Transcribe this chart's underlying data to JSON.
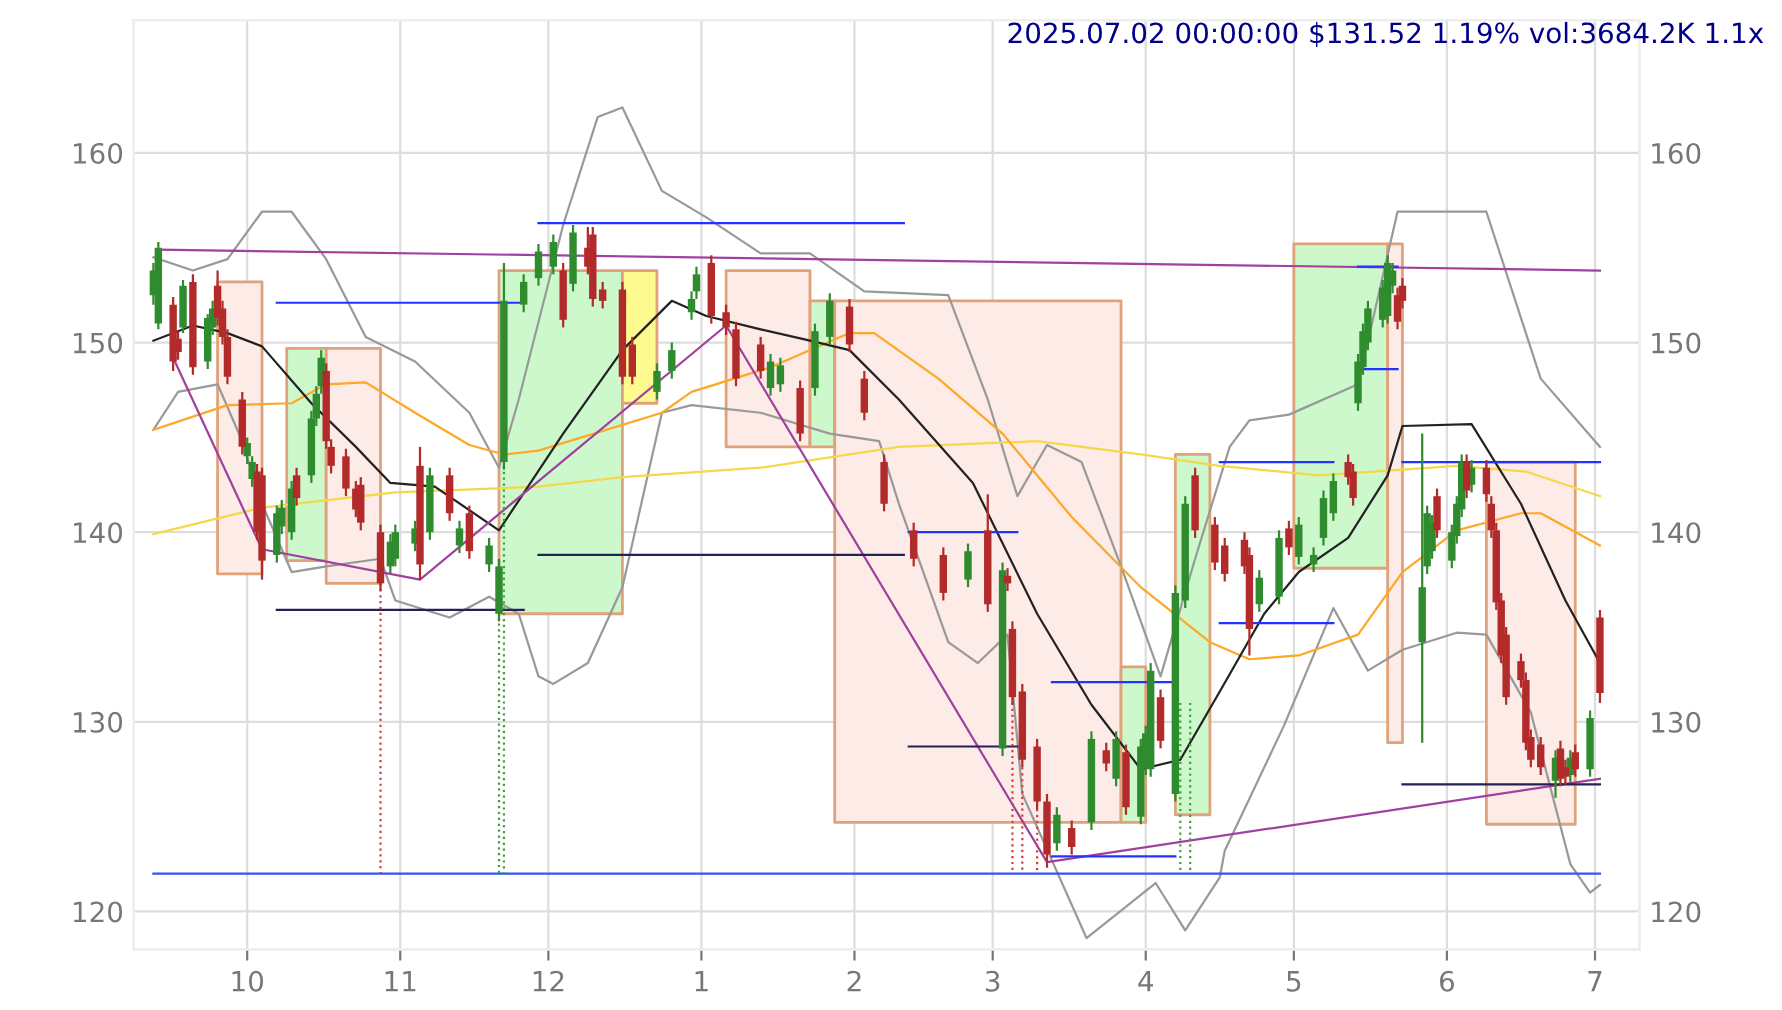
{
  "chart_data": {
    "type": "candlestick",
    "title": "2025.07.02 00:00:00 $131.52 1.19% vol:3684.2K 1.1x",
    "xlim": [
      "2024-09-08",
      "2025-07-10"
    ],
    "xticks": [
      {
        "value": "2024-10-01",
        "label": "10"
      },
      {
        "value": "2024-11-01",
        "label": "11"
      },
      {
        "value": "2024-12-01",
        "label": "12"
      },
      {
        "value": "2025-01-01",
        "label": "1"
      },
      {
        "value": "2025-02-01",
        "label": "2"
      },
      {
        "value": "2025-03-01",
        "label": "3"
      },
      {
        "value": "2025-04-01",
        "label": "4"
      },
      {
        "value": "2025-05-01",
        "label": "5"
      },
      {
        "value": "2025-06-01",
        "label": "6"
      },
      {
        "value": "2025-07-01",
        "label": "7"
      }
    ],
    "ylim": [
      118,
      167
    ],
    "yticks": [
      120,
      130,
      140,
      150,
      160
    ],
    "y2lim": [
      118,
      167
    ],
    "y2ticks": [
      120,
      130,
      140,
      150,
      160
    ],
    "grid": true,
    "series": [
      {
        "type": "area",
        "color": "#fcebe6",
        "x": [
          "2024-09-25",
          "2024-09-25",
          "2024-10-04",
          "2024-10-04"
        ],
        "values": [
          137.8,
          153.2,
          153.2,
          137.8
        ]
      },
      {
        "type": "area",
        "color": "#ccf8cc",
        "x": [
          "2024-10-09",
          "2024-10-09",
          "2024-10-17",
          "2024-10-17"
        ],
        "values": [
          138.5,
          149.7,
          149.7,
          138.5
        ]
      },
      {
        "type": "area",
        "color": "#fcebe6",
        "x": [
          "2024-10-17",
          "2024-10-17",
          "2024-10-28",
          "2024-10-28"
        ],
        "values": [
          137.3,
          149.7,
          149.7,
          137.3
        ]
      },
      {
        "type": "area",
        "color": "#ccf8cc",
        "x": [
          "2024-11-21",
          "2024-11-21",
          "2024-12-16",
          "2024-12-16"
        ],
        "values": [
          135.7,
          153.8,
          153.8,
          135.7
        ]
      },
      {
        "type": "area",
        "color": "#fdfa90",
        "x": [
          "2024-12-16",
          "2024-12-16",
          "2024-12-23",
          "2024-12-23"
        ],
        "values": [
          146.8,
          153.8,
          153.8,
          146.8
        ]
      },
      {
        "type": "area",
        "color": "#fcebe6",
        "x": [
          "2025-01-06",
          "2025-01-06",
          "2025-01-23",
          "2025-01-23"
        ],
        "values": [
          144.5,
          153.8,
          153.8,
          144.5
        ]
      },
      {
        "type": "area",
        "color": "#ccf8cc",
        "x": [
          "2025-01-23",
          "2025-01-23",
          "2025-01-28",
          "2025-01-28"
        ],
        "values": [
          144.5,
          152.2,
          152.2,
          144.5
        ]
      },
      {
        "type": "area",
        "color": "#fcebe6",
        "x": [
          "2025-01-28",
          "2025-01-28",
          "2025-03-27",
          "2025-03-27"
        ],
        "values": [
          124.7,
          152.2,
          152.2,
          124.7
        ]
      },
      {
        "type": "area",
        "color": "#ccf8cc",
        "x": [
          "2025-03-27",
          "2025-03-27",
          "2025-04-01",
          "2025-04-01"
        ],
        "values": [
          124.7,
          132.9,
          132.9,
          124.7
        ]
      },
      {
        "type": "area",
        "color": "#ccf8cc",
        "x": [
          "2025-04-07",
          "2025-04-07",
          "2025-04-14",
          "2025-04-14"
        ],
        "values": [
          125.1,
          144.1,
          144.1,
          125.1
        ]
      },
      {
        "type": "area",
        "color": "#ccf8cc",
        "x": [
          "2025-05-01",
          "2025-05-01",
          "2025-05-20",
          "2025-05-20"
        ],
        "values": [
          138.1,
          155.2,
          155.2,
          138.1
        ]
      },
      {
        "type": "area",
        "color": "#fcebe6",
        "x": [
          "2025-05-20",
          "2025-05-20",
          "2025-05-23",
          "2025-05-23"
        ],
        "values": [
          128.9,
          155.2,
          155.2,
          128.9
        ]
      },
      {
        "type": "area",
        "color": "#fcebe6",
        "x": [
          "2025-06-09",
          "2025-06-09",
          "2025-06-27",
          "2025-06-27"
        ],
        "values": [
          124.6,
          143.7,
          143.7,
          124.6
        ]
      },
      {
        "type": "line",
        "color": "#999999",
        "x": [
          "2024-09-12",
          "2024-09-20",
          "2024-09-27",
          "2024-10-04",
          "2024-10-10",
          "2024-10-17",
          "2024-10-25",
          "2024-11-04",
          "2024-11-15",
          "2024-11-21",
          "2024-11-25",
          "2024-12-04",
          "2024-12-11",
          "2024-12-16",
          "2024-12-24",
          "2025-01-02",
          "2025-01-13",
          "2025-01-23",
          "2025-02-03",
          "2025-02-20",
          "2025-02-28",
          "2025-03-06",
          "2025-03-12",
          "2025-03-19",
          "2025-03-27",
          "2025-04-04",
          "2025-04-11",
          "2025-04-18",
          "2025-04-22",
          "2025-04-30",
          "2025-05-14",
          "2025-05-22",
          "2025-06-09",
          "2025-06-20",
          "2025-07-02"
        ],
        "values": [
          154.5,
          153.8,
          154.4,
          156.9,
          156.9,
          154.4,
          150.3,
          149.0,
          146.3,
          143.4,
          147.0,
          156.2,
          161.9,
          162.4,
          158.0,
          156.6,
          154.7,
          154.7,
          152.7,
          152.5,
          147.0,
          141.9,
          144.6,
          143.7,
          138.2,
          132.4,
          138.6,
          144.5,
          145.9,
          146.2,
          147.8,
          156.9,
          156.9,
          148.1,
          144.5
        ]
      },
      {
        "type": "line",
        "color": "#999999",
        "x": [
          "2024-09-12",
          "2024-09-17",
          "2024-09-25",
          "2024-09-30",
          "2024-10-04",
          "2024-10-10",
          "2024-10-17",
          "2024-10-28",
          "2024-10-31",
          "2024-11-11",
          "2024-11-19",
          "2024-11-25",
          "2024-11-29",
          "2024-12-02",
          "2024-12-09",
          "2024-12-16",
          "2024-12-24",
          "2024-12-30",
          "2025-01-13",
          "2025-01-27",
          "2025-02-06",
          "2025-02-10",
          "2025-02-20",
          "2025-02-26",
          "2025-03-04",
          "2025-03-07",
          "2025-03-20",
          "2025-04-03",
          "2025-04-09",
          "2025-04-16",
          "2025-04-17",
          "2025-04-29",
          "2025-05-09",
          "2025-05-16",
          "2025-05-23",
          "2025-06-03",
          "2025-06-09",
          "2025-06-18",
          "2025-06-26",
          "2025-06-30",
          "2025-07-02"
        ],
        "values": [
          145.4,
          147.4,
          147.8,
          144.8,
          141.5,
          137.9,
          138.2,
          138.6,
          136.4,
          135.5,
          136.6,
          135.7,
          132.4,
          132.0,
          133.1,
          137.1,
          146.3,
          146.7,
          146.3,
          145.2,
          144.8,
          141.5,
          134.2,
          133.1,
          134.6,
          126.2,
          118.6,
          121.5,
          119.0,
          121.8,
          123.2,
          129.8,
          136.0,
          132.7,
          133.8,
          134.7,
          134.6,
          130.5,
          122.5,
          121.0,
          121.4
        ]
      },
      {
        "type": "line",
        "color": "#f5d84a",
        "x": [
          "2024-09-12",
          "2024-10-04",
          "2024-10-31",
          "2024-11-29",
          "2024-12-16",
          "2025-01-13",
          "2025-02-10",
          "2025-03-10",
          "2025-03-31",
          "2025-04-16",
          "2025-05-06",
          "2025-06-03",
          "2025-06-17",
          "2025-07-02"
        ],
        "values": [
          139.9,
          141.3,
          142.1,
          142.4,
          142.9,
          143.4,
          144.5,
          144.8,
          144.1,
          143.5,
          143.0,
          143.5,
          143.2,
          141.9
        ]
      },
      {
        "type": "line",
        "color": "#ffa726",
        "x": [
          "2024-09-12",
          "2024-09-27",
          "2024-10-10",
          "2024-10-17",
          "2024-10-25",
          "2024-11-04",
          "2024-11-15",
          "2024-11-22",
          "2024-11-29",
          "2024-12-24",
          "2024-12-30",
          "2025-01-15",
          "2025-01-31",
          "2025-02-05",
          "2025-02-18",
          "2025-03-03",
          "2025-03-17",
          "2025-03-31",
          "2025-04-14",
          "2025-04-22",
          "2025-05-02",
          "2025-05-14",
          "2025-05-23",
          "2025-06-03",
          "2025-06-16",
          "2025-06-20",
          "2025-07-02"
        ],
        "values": [
          145.4,
          146.7,
          146.8,
          147.8,
          147.9,
          146.3,
          144.6,
          144.1,
          144.3,
          146.3,
          147.4,
          148.7,
          150.5,
          150.5,
          148.1,
          145.2,
          140.8,
          137.1,
          134.2,
          133.3,
          133.5,
          134.6,
          137.9,
          140.1,
          141.0,
          141.0,
          139.3
        ]
      },
      {
        "type": "line",
        "color": "#222222",
        "x": [
          "2024-09-12",
          "2024-09-20",
          "2024-09-27",
          "2024-10-04",
          "2024-10-14",
          "2024-10-23",
          "2024-10-30",
          "2024-11-08",
          "2024-11-21",
          "2024-12-04",
          "2024-12-16",
          "2024-12-26",
          "2025-01-02",
          "2025-01-13",
          "2025-01-23",
          "2025-01-31",
          "2025-02-10",
          "2025-02-25",
          "2025-03-10",
          "2025-03-21",
          "2025-03-31",
          "2025-04-08",
          "2025-04-16",
          "2025-04-25",
          "2025-05-02",
          "2025-05-12",
          "2025-05-20",
          "2025-05-23",
          "2025-06-06",
          "2025-06-16",
          "2025-06-25",
          "2025-07-02"
        ],
        "values": [
          150.1,
          150.9,
          150.5,
          149.8,
          146.8,
          144.5,
          142.6,
          142.4,
          140.1,
          145.2,
          149.6,
          152.2,
          151.4,
          150.7,
          150.1,
          149.6,
          147.0,
          142.6,
          135.7,
          130.9,
          127.5,
          128.0,
          131.6,
          135.7,
          137.9,
          139.7,
          143.0,
          145.6,
          145.7,
          141.5,
          136.4,
          133.1
        ]
      },
      {
        "type": "line",
        "color": "#a040a0",
        "x": [
          "2024-09-13",
          "2025-07-02"
        ],
        "values": [
          154.9,
          153.8
        ]
      },
      {
        "type": "line",
        "color": "#a040a0",
        "x": [
          "2024-09-16",
          "2024-10-04",
          "2024-11-05",
          "2025-01-06",
          "2025-03-12",
          "2025-07-02"
        ],
        "values": [
          149.2,
          139.1,
          137.5,
          150.9,
          122.6,
          127.0
        ]
      },
      {
        "type": "line",
        "color": "#3355ee",
        "x": [
          "2024-09-12",
          "2025-07-02"
        ],
        "values": [
          122.0,
          122.0
        ]
      },
      {
        "type": "line",
        "color": "#2233ff",
        "x": [
          "2024-10-07",
          "2024-11-26"
        ],
        "values": [
          152.1,
          152.1
        ]
      },
      {
        "type": "line",
        "color": "#222255",
        "x": [
          "2024-10-07",
          "2024-11-26"
        ],
        "values": [
          135.9,
          135.9
        ]
      },
      {
        "type": "line",
        "color": "#2233ff",
        "x": [
          "2024-11-29",
          "2025-02-11"
        ],
        "values": [
          156.3,
          156.3
        ]
      },
      {
        "type": "line",
        "color": "#222255",
        "x": [
          "2024-11-29",
          "2025-02-11"
        ],
        "values": [
          138.8,
          138.8
        ]
      },
      {
        "type": "line",
        "color": "#2233ff",
        "x": [
          "2025-02-12",
          "2025-03-06"
        ],
        "values": [
          140.0,
          140.0
        ]
      },
      {
        "type": "line",
        "color": "#222255",
        "x": [
          "2025-02-12",
          "2025-03-06"
        ],
        "values": [
          128.7,
          128.7
        ]
      },
      {
        "type": "line",
        "color": "#2233ff",
        "x": [
          "2025-03-13",
          "2025-04-07"
        ],
        "values": [
          132.1,
          132.1
        ]
      },
      {
        "type": "line",
        "color": "#2233ff",
        "x": [
          "2025-03-13",
          "2025-04-07"
        ],
        "values": [
          122.9,
          122.9
        ]
      },
      {
        "type": "line",
        "color": "#2233ff",
        "x": [
          "2025-04-16",
          "2025-05-09"
        ],
        "values": [
          143.7,
          143.7
        ]
      },
      {
        "type": "line",
        "color": "#2233ff",
        "x": [
          "2025-04-16",
          "2025-05-09"
        ],
        "values": [
          135.2,
          135.2
        ]
      },
      {
        "type": "line",
        "color": "#2233ff",
        "x": [
          "2025-05-14",
          "2025-05-22"
        ],
        "values": [
          154.0,
          154.0
        ]
      },
      {
        "type": "line",
        "color": "#2233ff",
        "x": [
          "2025-05-14",
          "2025-05-22"
        ],
        "values": [
          148.6,
          148.6
        ]
      },
      {
        "type": "line",
        "color": "#2233ff",
        "x": [
          "2025-05-23",
          "2025-07-02"
        ],
        "values": [
          143.7,
          143.7
        ]
      },
      {
        "type": "line",
        "color": "#222255",
        "x": [
          "2025-05-23",
          "2025-07-02"
        ],
        "values": [
          126.7,
          126.7
        ]
      },
      {
        "type": "line",
        "line_style": "dotted",
        "color": "#d04040",
        "x": [
          "2024-10-28",
          "2024-10-28"
        ],
        "values": [
          137.3,
          122.0
        ]
      },
      {
        "type": "line",
        "line_style": "dotted",
        "color": "#40a040",
        "x": [
          "2024-11-21",
          "2024-11-21"
        ],
        "values": [
          135.5,
          122.0
        ]
      },
      {
        "type": "line",
        "line_style": "dotted",
        "color": "#40a040",
        "x": [
          "2024-11-22",
          "2024-11-22"
        ],
        "values": [
          143.5,
          122.0
        ]
      },
      {
        "type": "line",
        "line_style": "dotted",
        "color": "#d04040",
        "x": [
          "2025-03-05",
          "2025-03-05"
        ],
        "values": [
          131.0,
          122.0
        ]
      },
      {
        "type": "line",
        "line_style": "dotted",
        "color": "#d04040",
        "x": [
          "2025-03-07",
          "2025-03-07"
        ],
        "values": [
          127.6,
          122.0
        ]
      },
      {
        "type": "line",
        "line_style": "dotted",
        "color": "#d04040",
        "x": [
          "2025-03-10",
          "2025-03-10"
        ],
        "values": [
          125.4,
          122.0
        ]
      },
      {
        "type": "line",
        "line_style": "dotted",
        "color": "#40a040",
        "x": [
          "2025-04-08",
          "2025-04-08"
        ],
        "values": [
          131.0,
          122.0
        ]
      },
      {
        "type": "line",
        "line_style": "dotted",
        "color": "#40a040",
        "x": [
          "2025-04-10",
          "2025-04-10"
        ],
        "values": [
          131.0,
          122.0
        ]
      },
      {
        "color": "#2e8b2e",
        "x": [
          "2024-09-12",
          "2024-09-13",
          "2024-09-18",
          "2024-09-23",
          "2024-09-24",
          "2024-10-01",
          "2024-10-02",
          "2024-10-07",
          "2024-10-08",
          "2024-10-10",
          "2024-10-14",
          "2024-10-15",
          "2024-10-16",
          "2024-10-30",
          "2024-10-31",
          "2024-11-04",
          "2024-11-07",
          "2024-11-13",
          "2024-11-19",
          "2024-11-21",
          "2024-11-22",
          "2024-11-26",
          "2024-11-29",
          "2024-12-02",
          "2024-12-06",
          "2024-12-23",
          "2024-12-26",
          "2024-12-30",
          "2024-12-31",
          "2025-01-15",
          "2025-01-17",
          "2025-01-24",
          "2025-01-27",
          "2025-02-24",
          "2025-03-03",
          "2025-03-14",
          "2025-03-21",
          "2025-03-26",
          "2025-03-31",
          "2025-04-01",
          "2025-04-02",
          "2025-04-07",
          "2025-04-09",
          "2025-04-24",
          "2025-04-28",
          "2025-05-02",
          "2025-05-05",
          "2025-05-07",
          "2025-05-09",
          "2025-05-14",
          "2025-05-15",
          "2025-05-16",
          "2025-05-19",
          "2025-05-20",
          "2025-05-21",
          "2025-05-27",
          "2025-05-28",
          "2025-05-29",
          "2025-06-02",
          "2025-06-03",
          "2025-06-04",
          "2025-06-06",
          "2025-06-23",
          "2025-06-26",
          "2025-06-30"
        ],
        "ohlc": [
          [
            152.5,
            154.2,
            152.0,
            153.8
          ],
          [
            151.0,
            155.3,
            150.7,
            155.0
          ],
          [
            150.8,
            153.3,
            150.5,
            153.0
          ],
          [
            149.0,
            151.5,
            148.6,
            151.3
          ],
          [
            150.8,
            152.2,
            150.4,
            151.8
          ],
          [
            144.0,
            145.0,
            143.6,
            144.7
          ],
          [
            142.8,
            144.0,
            142.4,
            143.7
          ],
          [
            138.8,
            141.4,
            138.4,
            141.0
          ],
          [
            140.3,
            141.7,
            139.9,
            141.3
          ],
          [
            140.0,
            142.7,
            139.6,
            142.3
          ],
          [
            143.0,
            146.4,
            142.6,
            146.0
          ],
          [
            146.0,
            147.7,
            145.6,
            147.3
          ],
          [
            147.7,
            149.6,
            147.3,
            149.2
          ],
          [
            138.2,
            139.9,
            137.8,
            139.5
          ],
          [
            138.6,
            140.4,
            138.2,
            140.0
          ],
          [
            139.4,
            140.6,
            139.0,
            140.2
          ],
          [
            140.0,
            143.4,
            139.6,
            143.0
          ],
          [
            139.3,
            140.6,
            138.9,
            140.2
          ],
          [
            138.3,
            139.7,
            137.9,
            139.3
          ],
          [
            135.7,
            138.6,
            135.3,
            138.2
          ],
          [
            143.7,
            154.2,
            143.3,
            152.2
          ],
          [
            152.0,
            153.6,
            151.6,
            153.2
          ],
          [
            153.4,
            155.2,
            153.0,
            154.8
          ],
          [
            154.0,
            155.7,
            153.6,
            155.3
          ],
          [
            153.1,
            156.2,
            152.7,
            155.8
          ],
          [
            147.4,
            148.9,
            147.0,
            148.5
          ],
          [
            148.5,
            150.0,
            148.1,
            149.6
          ],
          [
            151.6,
            152.7,
            151.2,
            152.3
          ],
          [
            152.7,
            154.0,
            152.3,
            153.6
          ],
          [
            147.6,
            149.4,
            147.2,
            149.0
          ],
          [
            147.8,
            149.2,
            147.4,
            148.8
          ],
          [
            147.6,
            151.0,
            147.2,
            150.6
          ],
          [
            150.3,
            152.6,
            149.9,
            152.2
          ],
          [
            137.5,
            139.4,
            137.1,
            139.0
          ],
          [
            128.6,
            138.4,
            128.2,
            138.0
          ],
          [
            123.6,
            125.5,
            123.2,
            125.1
          ],
          [
            124.7,
            129.5,
            124.3,
            129.1
          ],
          [
            127.0,
            129.5,
            126.6,
            129.1
          ],
          [
            125.0,
            129.1,
            124.6,
            128.7
          ],
          [
            127.6,
            129.8,
            127.2,
            129.4
          ],
          [
            127.5,
            133.1,
            127.1,
            132.7
          ],
          [
            126.2,
            137.2,
            125.8,
            136.8
          ],
          [
            136.4,
            141.9,
            136.0,
            141.5
          ],
          [
            136.2,
            138.0,
            135.8,
            137.6
          ],
          [
            136.6,
            140.1,
            136.2,
            139.7
          ],
          [
            138.7,
            140.8,
            138.3,
            140.4
          ],
          [
            138.3,
            139.2,
            137.9,
            138.8
          ],
          [
            139.7,
            142.2,
            139.3,
            141.8
          ],
          [
            141.0,
            143.1,
            140.6,
            142.7
          ],
          [
            146.8,
            149.4,
            146.4,
            149.0
          ],
          [
            148.7,
            151.0,
            148.3,
            150.6
          ],
          [
            150.0,
            152.2,
            149.6,
            151.8
          ],
          [
            151.2,
            153.3,
            150.8,
            152.9
          ],
          [
            151.4,
            154.6,
            151.0,
            154.2
          ],
          [
            153.0,
            154.2,
            152.6,
            153.8
          ],
          [
            134.2,
            145.2,
            128.9,
            137.1
          ],
          [
            138.2,
            141.4,
            137.8,
            141.0
          ],
          [
            139.0,
            140.9,
            138.6,
            140.5
          ],
          [
            138.5,
            140.4,
            138.1,
            140.0
          ],
          [
            139.8,
            141.9,
            139.4,
            141.5
          ],
          [
            141.2,
            144.1,
            140.8,
            143.7
          ],
          [
            142.5,
            143.8,
            142.1,
            143.4
          ],
          [
            126.9,
            128.5,
            126.0,
            128.1
          ],
          [
            127.2,
            128.5,
            126.8,
            128.1
          ],
          [
            127.5,
            130.6,
            127.1,
            130.2
          ]
        ]
      },
      {
        "color": "#b22a2a",
        "x": [
          "2024-09-16",
          "2024-09-17",
          "2024-09-20",
          "2024-09-25",
          "2024-09-26",
          "2024-09-27",
          "2024-09-30",
          "2024-10-03",
          "2024-10-04",
          "2024-10-11",
          "2024-10-17",
          "2024-10-18",
          "2024-10-21",
          "2024-10-23",
          "2024-10-24",
          "2024-10-28",
          "2024-11-05",
          "2024-11-11",
          "2024-11-15",
          "2024-12-04",
          "2024-12-09",
          "2024-12-10",
          "2024-12-12",
          "2024-12-16",
          "2024-12-18",
          "2025-01-03",
          "2025-01-06",
          "2025-01-08",
          "2025-01-13",
          "2025-01-21",
          "2025-01-31",
          "2025-02-03",
          "2025-02-07",
          "2025-02-13",
          "2025-02-19",
          "2025-02-28",
          "2025-03-04",
          "2025-03-05",
          "2025-03-07",
          "2025-03-10",
          "2025-03-12",
          "2025-03-17",
          "2025-03-24",
          "2025-03-28",
          "2025-04-04",
          "2025-04-11",
          "2025-04-15",
          "2025-04-17",
          "2025-04-21",
          "2025-04-22",
          "2025-04-30",
          "2025-05-12",
          "2025-05-13",
          "2025-05-22",
          "2025-05-23",
          "2025-05-30",
          "2025-06-05",
          "2025-06-09",
          "2025-06-10",
          "2025-06-11",
          "2025-06-12",
          "2025-06-13",
          "2025-06-16",
          "2025-06-17",
          "2025-06-18",
          "2025-06-20",
          "2025-06-24",
          "2025-06-25",
          "2025-06-27",
          "2025-07-02"
        ],
        "ohlc": [
          [
            152.0,
            152.4,
            148.5,
            149.0
          ],
          [
            150.2,
            150.6,
            149.1,
            149.5
          ],
          [
            153.2,
            153.6,
            148.3,
            148.7
          ],
          [
            153.0,
            153.8,
            150.9,
            151.3
          ],
          [
            151.8,
            152.2,
            149.9,
            150.3
          ],
          [
            150.3,
            150.7,
            147.8,
            148.2
          ],
          [
            147.0,
            147.4,
            144.1,
            144.5
          ],
          [
            143.2,
            143.6,
            139.6,
            140.0
          ],
          [
            143.0,
            143.4,
            137.5,
            138.5
          ],
          [
            143.0,
            143.4,
            141.4,
            141.8
          ],
          [
            148.5,
            148.9,
            144.4,
            144.8
          ],
          [
            144.5,
            144.9,
            143.1,
            143.5
          ],
          [
            144.0,
            144.4,
            141.9,
            142.3
          ],
          [
            142.3,
            142.7,
            140.8,
            141.2
          ],
          [
            142.5,
            142.9,
            140.1,
            140.5
          ],
          [
            140.0,
            140.4,
            136.9,
            137.3
          ],
          [
            143.5,
            144.5,
            137.5,
            138.3
          ],
          [
            143.0,
            143.4,
            140.6,
            141.0
          ],
          [
            141.0,
            141.4,
            138.6,
            139.0
          ],
          [
            153.8,
            154.2,
            150.8,
            151.2
          ],
          [
            155.0,
            156.1,
            153.6,
            154.0
          ],
          [
            155.7,
            156.1,
            151.9,
            152.3
          ],
          [
            152.8,
            153.2,
            151.8,
            152.2
          ],
          [
            152.8,
            153.2,
            147.8,
            148.2
          ],
          [
            149.9,
            150.3,
            147.8,
            148.2
          ],
          [
            154.2,
            154.6,
            151.0,
            151.4
          ],
          [
            151.6,
            152.0,
            150.4,
            150.8
          ],
          [
            150.7,
            151.1,
            147.7,
            148.1
          ],
          [
            149.9,
            150.3,
            148.1,
            148.5
          ],
          [
            147.6,
            148.0,
            144.8,
            145.2
          ],
          [
            151.9,
            152.3,
            149.5,
            149.9
          ],
          [
            148.1,
            148.5,
            145.9,
            146.3
          ],
          [
            143.7,
            144.1,
            141.1,
            141.5
          ],
          [
            140.1,
            140.5,
            138.2,
            138.6
          ],
          [
            138.8,
            139.2,
            136.4,
            136.8
          ],
          [
            140.1,
            142.0,
            135.8,
            136.2
          ],
          [
            137.7,
            138.1,
            136.9,
            137.3
          ],
          [
            134.9,
            135.3,
            130.9,
            131.3
          ],
          [
            131.6,
            132.0,
            127.6,
            128.0
          ],
          [
            128.7,
            129.1,
            125.4,
            125.8
          ],
          [
            125.8,
            126.2,
            122.3,
            123.0
          ],
          [
            124.4,
            124.8,
            123.0,
            123.4
          ],
          [
            128.5,
            128.9,
            127.4,
            127.8
          ],
          [
            128.4,
            128.8,
            125.1,
            125.5
          ],
          [
            131.3,
            131.7,
            128.6,
            129.0
          ],
          [
            143.0,
            143.4,
            139.7,
            140.1
          ],
          [
            140.4,
            140.8,
            138.0,
            138.4
          ],
          [
            139.3,
            139.7,
            137.4,
            137.8
          ],
          [
            139.6,
            140.0,
            137.8,
            138.2
          ],
          [
            138.8,
            139.2,
            133.5,
            134.9
          ],
          [
            140.2,
            140.6,
            138.8,
            139.2
          ],
          [
            143.7,
            144.1,
            142.5,
            142.9
          ],
          [
            143.2,
            143.6,
            141.4,
            141.8
          ],
          [
            152.5,
            152.9,
            150.7,
            151.1
          ],
          [
            153.0,
            153.4,
            151.8,
            152.2
          ],
          [
            141.9,
            142.3,
            139.7,
            140.1
          ],
          [
            143.7,
            144.1,
            141.8,
            142.2
          ],
          [
            143.4,
            143.8,
            141.6,
            142.0
          ],
          [
            141.5,
            141.9,
            139.7,
            140.1
          ],
          [
            140.1,
            140.5,
            135.9,
            136.3
          ],
          [
            136.4,
            136.8,
            133.1,
            133.5
          ],
          [
            134.6,
            135.0,
            130.9,
            131.3
          ],
          [
            133.2,
            133.6,
            131.8,
            132.2
          ],
          [
            132.2,
            132.6,
            128.5,
            128.9
          ],
          [
            129.2,
            129.6,
            127.6,
            128.0
          ],
          [
            128.8,
            129.2,
            127.2,
            127.6
          ],
          [
            128.6,
            129.0,
            126.6,
            127.0
          ],
          [
            127.6,
            128.0,
            126.7,
            127.1
          ],
          [
            128.4,
            128.8,
            127.1,
            127.5
          ],
          [
            135.5,
            135.9,
            131.0,
            131.52
          ]
        ]
      }
    ]
  }
}
